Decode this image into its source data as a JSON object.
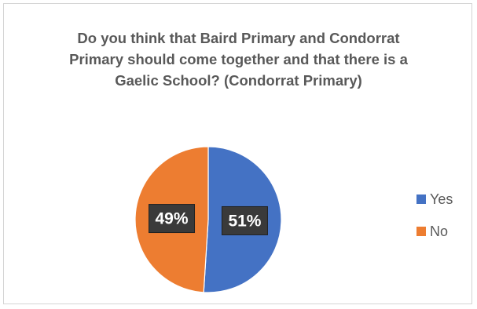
{
  "chart_data": {
    "type": "pie",
    "title": "Do you think that Baird Primary and Condorrat Primary should come together and that there is a Gaelic School? (Condorrat Primary)",
    "categories": [
      "Yes",
      "No"
    ],
    "values": [
      51,
      49
    ],
    "labels": [
      "51%",
      "49%"
    ],
    "colors": [
      "#4472c4",
      "#ed7d31"
    ],
    "legend_position": "right",
    "start_angle_deg": 0,
    "direction": "clockwise"
  }
}
